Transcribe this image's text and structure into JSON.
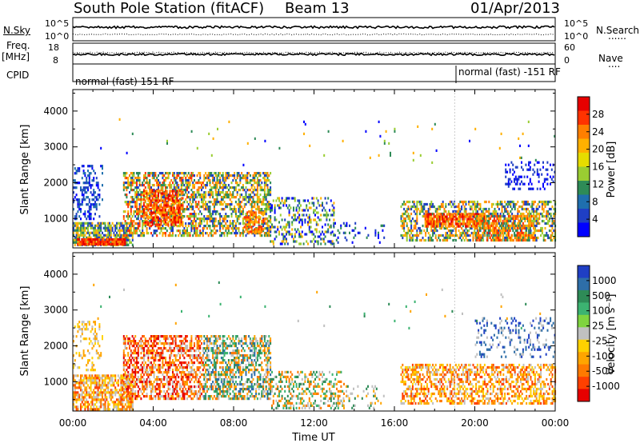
{
  "header": {
    "station": "South Pole Station (fitACF)",
    "beam": "Beam 13",
    "date": "01/Apr/2013"
  },
  "top_panels": {
    "nsky_label": "N.Sky",
    "nsearch_label": "N.Search",
    "nsearch_legend": "......",
    "left_ticks": [
      "10^5",
      "10^0"
    ],
    "right_ticks": [
      "10^5",
      "10^0"
    ],
    "freq_label": "Freq.",
    "freq_unit": "[MHz]",
    "freq_ticks": [
      "18",
      "8"
    ],
    "nave_label": "Nave",
    "nave_legend": "....",
    "nave_ticks": [
      "60",
      "0"
    ],
    "cpid_label": "CPID",
    "cpid_mode_1": "normal (fast) 151 RF",
    "cpid_mode_2": "normal (fast) -151 RF"
  },
  "power_colorbar": {
    "label": "Power [dB]",
    "ticks": [
      "28",
      "24",
      "20",
      "16",
      "12",
      "8",
      "4"
    ],
    "colors": [
      "#e60000",
      "#ff3300",
      "#ff7f00",
      "#ffb000",
      "#e6dc00",
      "#9acd32",
      "#2e8b57",
      "#1f6fae",
      "#1f3fc4",
      "#0000ff"
    ]
  },
  "velocity_colorbar": {
    "label": "Velocity [m s⁻¹]",
    "ticks": [
      "1000",
      "500",
      "100",
      "25",
      "-25",
      "-100",
      "-500",
      "-1000"
    ],
    "colors": [
      "#1f3fc4",
      "#2e6ea8",
      "#2e8b57",
      "#3cb371",
      "#7fd43f",
      "#c0c0c0",
      "#ffd200",
      "#ffa500",
      "#ff7a00",
      "#ff4000",
      "#e60000"
    ]
  },
  "chart_data": [
    {
      "type": "heatmap",
      "name": "power",
      "ylabel": "Slant Range [km]",
      "xlabel": "",
      "x_ticks": [
        "00:00",
        "04:00",
        "08:00",
        "12:00",
        "16:00",
        "20:00",
        "00:00"
      ],
      "y_ticks": [
        "4000",
        "3000",
        "2000",
        "1000"
      ],
      "xlim_hours": [
        0,
        24
      ],
      "ylim_km": [
        180,
        4600
      ],
      "scatter_regions": [
        {
          "t0": 0.0,
          "t1": 1.5,
          "r0": 1000,
          "r1": 2500,
          "density": 0.35,
          "colors": [
            "#0000ff",
            "#1f3fc4",
            "#1f6fae"
          ]
        },
        {
          "t0": 0.0,
          "t1": 3.0,
          "r0": 250,
          "r1": 900,
          "density": 0.75,
          "colors": [
            "#1f3fc4",
            "#2e8b57",
            "#9acd32",
            "#ffb000"
          ]
        },
        {
          "t0": 0.2,
          "t1": 2.6,
          "r0": 250,
          "r1": 450,
          "density": 0.95,
          "colors": [
            "#e60000",
            "#ff3300",
            "#ff7f00"
          ]
        },
        {
          "t0": 2.5,
          "t1": 6.5,
          "r0": 500,
          "r1": 2300,
          "density": 0.55,
          "colors": [
            "#1f3fc4",
            "#2e8b57",
            "#9acd32",
            "#ffb000",
            "#ff7f00",
            "#ff3300"
          ]
        },
        {
          "t0": 3.5,
          "t1": 5.5,
          "r0": 800,
          "r1": 1800,
          "density": 0.65,
          "colors": [
            "#ff7f00",
            "#ff3300",
            "#ffb000",
            "#e60000"
          ]
        },
        {
          "t0": 6.5,
          "t1": 9.8,
          "r0": 500,
          "r1": 2300,
          "density": 0.55,
          "colors": [
            "#1f3fc4",
            "#2e8b57",
            "#9acd32",
            "#ffb000",
            "#ff7f00"
          ]
        },
        {
          "t0": 8.5,
          "t1": 9.5,
          "r0": 600,
          "r1": 1200,
          "density": 0.6,
          "colors": [
            "#ff7f00",
            "#ff3300",
            "#ffb000"
          ]
        },
        {
          "t0": 9.8,
          "t1": 13.0,
          "r0": 300,
          "r1": 1600,
          "density": 0.3,
          "colors": [
            "#1f3fc4",
            "#2e8b57",
            "#9acd32",
            "#ffb000",
            "#0000ff"
          ]
        },
        {
          "t0": 12.8,
          "t1": 15.5,
          "r0": 300,
          "r1": 900,
          "density": 0.15,
          "colors": [
            "#1f3fc4",
            "#0000ff",
            "#2e8b57"
          ]
        },
        {
          "t0": 16.3,
          "t1": 24.0,
          "r0": 400,
          "r1": 1500,
          "density": 0.5,
          "colors": [
            "#1f3fc4",
            "#2e8b57",
            "#9acd32",
            "#ffb000",
            "#ff7f00"
          ]
        },
        {
          "t0": 17.5,
          "t1": 20.5,
          "r0": 750,
          "r1": 1150,
          "density": 0.75,
          "colors": [
            "#ff7f00",
            "#ff3300",
            "#e60000",
            "#ffb000"
          ]
        },
        {
          "t0": 20.0,
          "t1": 23.0,
          "r0": 400,
          "r1": 1100,
          "density": 0.55,
          "colors": [
            "#ff7f00",
            "#ff3300",
            "#ffb000",
            "#2e8b57"
          ]
        },
        {
          "t0": 21.5,
          "t1": 24.0,
          "r0": 1800,
          "r1": 2600,
          "density": 0.2,
          "colors": [
            "#1f3fc4",
            "#0000ff"
          ]
        },
        {
          "t0": 0.0,
          "t1": 24.0,
          "r0": 2500,
          "r1": 3800,
          "density": 0.008,
          "colors": [
            "#0000ff",
            "#9acd32",
            "#ffb000",
            "#2e8b57"
          ]
        }
      ]
    },
    {
      "type": "heatmap",
      "name": "velocity",
      "ylabel": "Slant Range [km]",
      "xlabel": "Time UT",
      "x_ticks": [
        "00:00",
        "04:00",
        "08:00",
        "12:00",
        "16:00",
        "20:00",
        "00:00"
      ],
      "y_ticks": [
        "4000",
        "3000",
        "2000",
        "1000"
      ],
      "xlim_hours": [
        0,
        24
      ],
      "ylim_km": [
        180,
        4600
      ],
      "scatter_regions": [
        {
          "t0": 0.0,
          "t1": 1.5,
          "r0": 1300,
          "r1": 2700,
          "density": 0.25,
          "colors": [
            "#c0c0c0",
            "#ffd200",
            "#ffa500"
          ]
        },
        {
          "t0": 0.0,
          "t1": 3.0,
          "r0": 250,
          "r1": 1200,
          "density": 0.7,
          "colors": [
            "#c0c0c0",
            "#ffa500",
            "#ff7a00",
            "#ff4000",
            "#ffd200"
          ]
        },
        {
          "t0": 2.5,
          "t1": 6.5,
          "r0": 500,
          "r1": 2300,
          "density": 0.55,
          "colors": [
            "#ff7a00",
            "#ff4000",
            "#e60000",
            "#ffa500",
            "#c0c0c0"
          ]
        },
        {
          "t0": 6.5,
          "t1": 9.8,
          "r0": 500,
          "r1": 2300,
          "density": 0.55,
          "colors": [
            "#2e8b57",
            "#3cb371",
            "#ff7a00",
            "#ffa500",
            "#2e6ea8",
            "#c0c0c0"
          ]
        },
        {
          "t0": 9.8,
          "t1": 13.5,
          "r0": 250,
          "r1": 1300,
          "density": 0.35,
          "colors": [
            "#2e8b57",
            "#3cb371",
            "#ffa500",
            "#c0c0c0",
            "#ff7a00"
          ]
        },
        {
          "t0": 13.0,
          "t1": 15.5,
          "r0": 250,
          "r1": 900,
          "density": 0.12,
          "colors": [
            "#2e8b57",
            "#ffa500",
            "#c0c0c0"
          ]
        },
        {
          "t0": 16.3,
          "t1": 24.0,
          "r0": 400,
          "r1": 1500,
          "density": 0.5,
          "colors": [
            "#ffa500",
            "#ff7a00",
            "#ffd200",
            "#ff4000",
            "#c0c0c0"
          ]
        },
        {
          "t0": 20.0,
          "t1": 24.0,
          "r0": 1700,
          "r1": 2800,
          "density": 0.2,
          "colors": [
            "#c0c0c0",
            "#1f3fc4",
            "#2e6ea8"
          ]
        },
        {
          "t0": 0.0,
          "t1": 24.0,
          "r0": 2500,
          "r1": 3800,
          "density": 0.008,
          "colors": [
            "#c0c0c0",
            "#3cb371",
            "#ffa500",
            "#2e8b57"
          ]
        }
      ]
    }
  ]
}
